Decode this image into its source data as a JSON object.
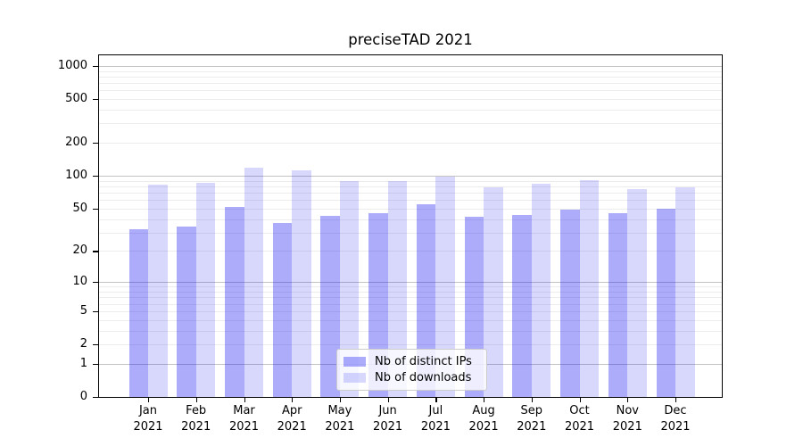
{
  "chart_data": {
    "type": "bar",
    "title": "preciseTAD 2021",
    "months": [
      "Jan",
      "Feb",
      "Mar",
      "Apr",
      "May",
      "Jun",
      "Jul",
      "Aug",
      "Sep",
      "Oct",
      "Nov",
      "Dec"
    ],
    "year": "2021",
    "series": [
      {
        "name": "Nb of distinct IPs",
        "color": "rgba(15,15,242,0.345)",
        "values": [
          32,
          34,
          52,
          37,
          43,
          45,
          55,
          42,
          44,
          49,
          45,
          50
        ]
      },
      {
        "name": "Nb of downloads",
        "color": "rgba(15,15,242,0.16)",
        "values": [
          83,
          86,
          119,
          113,
          89,
          89,
          98,
          78,
          85,
          91,
          75,
          78
        ]
      }
    ],
    "y_scale": "log10(value+1)",
    "y_ticks": [
      0,
      1,
      2,
      5,
      10,
      20,
      50,
      100,
      200,
      500,
      1000
    ],
    "y_major_gridlines": [
      1,
      10,
      100,
      1000
    ],
    "ylim": [
      0,
      1270
    ],
    "grid": "both",
    "legend_position": "lower center",
    "colors": {
      "major_grid": "#c3c3c3",
      "minor_grid": "#ececec",
      "spine": "#000000",
      "text": "#000000"
    }
  }
}
